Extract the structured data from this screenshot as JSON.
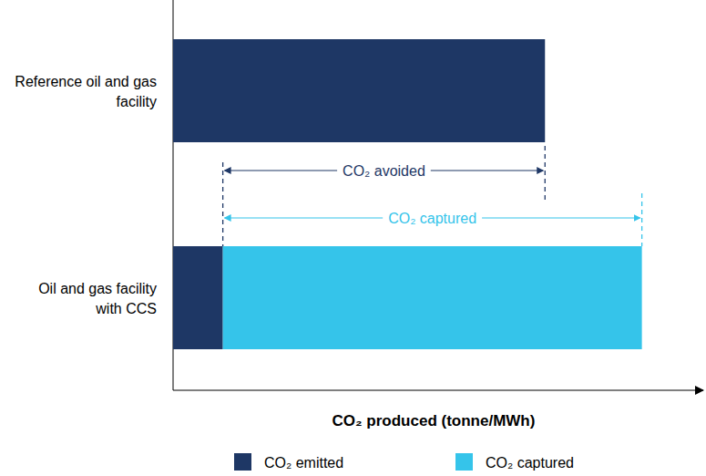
{
  "chart_data": {
    "type": "bar",
    "orientation": "horizontal",
    "stacked": true,
    "categories": [
      "Reference oil and gas facility",
      "Oil and gas facility with CCS"
    ],
    "series": [
      {
        "name": "CO₂ emitted",
        "color": "#1e3765",
        "values": [
          71,
          9.5
        ]
      },
      {
        "name": "CO₂ captured",
        "color": "#35c4ea",
        "values": [
          null,
          80
        ]
      }
    ],
    "x_label": "CO₂ produced (tonne/MWh)",
    "xlim": [
      0,
      100
    ],
    "tick_labels": false,
    "annotations": [
      {
        "text": "CO₂ avoided"
      },
      {
        "text": "CO₂ captured"
      }
    ]
  }
}
